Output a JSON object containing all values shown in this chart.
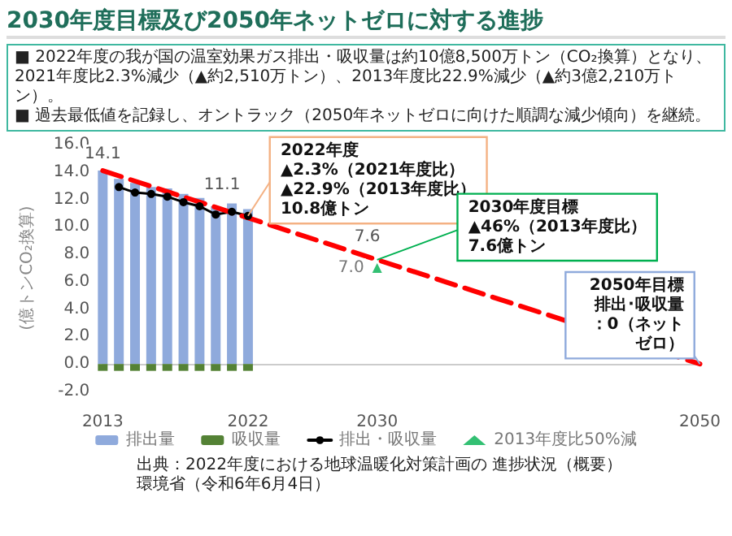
{
  "chart_data": {
    "type": "bar",
    "title": "2030年度目標及び2050年ネットゼロに対する進捗",
    "subtitle": "■ 2022年度の我が国の温室効果ガス排出・吸収量は約10億8,500万トン（CO₂換算）となり、2021年度比2.3%減少（▲約2,510万トン）、2013年度比22.9%減少（▲約3億2,210万トン）。\n■ 過去最低値を記録し、オントラック（2050年ネットゼロに向けた順調な減少傾向）を継続。",
    "ylabel": "(億トンCO₂換算)",
    "xlim": [
      2013,
      2050
    ],
    "xticks": [
      2013,
      2022,
      2030,
      2050
    ],
    "ylim": [
      -2,
      16
    ],
    "yticks": [
      {
        "value": -2,
        "label": "-2.0"
      },
      {
        "value": 0,
        "label": "0.0"
      },
      {
        "value": 2,
        "label": "2.0"
      },
      {
        "value": 4,
        "label": "4.0"
      },
      {
        "value": 6,
        "label": "6.0"
      },
      {
        "value": 8,
        "label": "8.0"
      },
      {
        "value": 10,
        "label": "10.0"
      },
      {
        "value": 12,
        "label": "12.0"
      },
      {
        "value": 14,
        "label": "14.0"
      },
      {
        "value": 16,
        "label": "16.0"
      }
    ],
    "legend": "bottom",
    "stacked": true,
    "series": [
      {
        "name": "排出量",
        "color": "#8faadc",
        "x": [
          2013,
          2014,
          2015,
          2016,
          2017,
          2018,
          2019,
          2020,
          2021,
          2022
        ],
        "values": [
          14.1,
          13.5,
          13.2,
          12.9,
          12.8,
          12.4,
          12.1,
          11.5,
          11.7,
          11.3
        ],
        "value_labels": [
          "14.1",
          null,
          null,
          null,
          null,
          null,
          null,
          null,
          null,
          null
        ]
      },
      {
        "name": "吸収量",
        "color": "#548235",
        "x": [
          2013,
          2014,
          2015,
          2016,
          2017,
          2018,
          2019,
          2020,
          2021,
          2022
        ],
        "values": [
          -0.5,
          -0.5,
          -0.5,
          -0.5,
          -0.5,
          -0.5,
          -0.5,
          -0.5,
          -0.5,
          -0.5
        ]
      },
      {
        "name": "排出・吸収量",
        "type": "line",
        "color": "#000000",
        "marker": "circle",
        "x": [
          2014,
          2015,
          2016,
          2017,
          2018,
          2019,
          2020,
          2021,
          2022
        ],
        "values": [
          12.9,
          12.5,
          12.4,
          12.2,
          11.8,
          11.5,
          10.9,
          11.1,
          10.8
        ],
        "value_labels": [
          null,
          null,
          null,
          null,
          null,
          null,
          null,
          "11.1",
          null
        ]
      },
      {
        "name": "2013年度比50%減",
        "type": "scatter",
        "color": "#00b050",
        "marker": "triangle",
        "x": [
          2030
        ],
        "values": [
          7.0
        ],
        "value_labels": [
          "7.0"
        ]
      },
      {
        "type": "line",
        "color": "#ff0000",
        "line_style": "dashed",
        "marker": "none",
        "x": [
          2013,
          2030,
          2050
        ],
        "values": [
          14.1,
          7.6,
          0
        ],
        "value_labels": [
          null,
          "7.6",
          null
        ]
      }
    ],
    "annotations": [
      {
        "text": "2022年度\n▲2.3%（2021年度比）\n▲22.9%（2013年度比）\n10.8億トン",
        "x": 2022,
        "y": 10.8
      },
      {
        "text": "2030年度目標\n▲46%（2013年度比）\n7.6億トン",
        "x": 2030,
        "y": 7.6
      },
      {
        "text": "2050年目標排出･吸収量：0（ネットゼロ）",
        "x": 2050,
        "y": 0
      },
      "出典：2022年度における地球温暖化対策計画の 進捗状況（概要）",
      "環境省（令和6年6月4日）"
    ]
  }
}
